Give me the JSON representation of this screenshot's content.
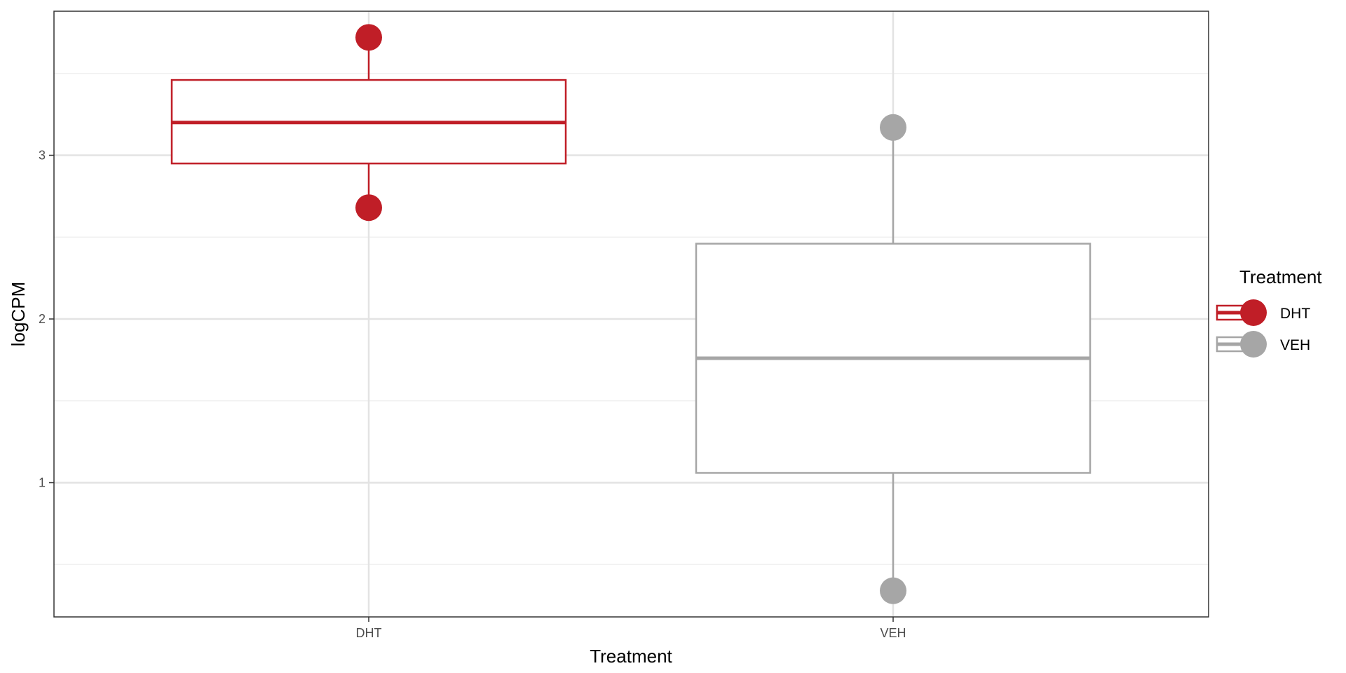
{
  "chart_data": {
    "type": "box",
    "x_categories": [
      "DHT",
      "VEH"
    ],
    "xlabel": "Treatment",
    "ylabel": "logCPM",
    "ylim": [
      0.18,
      3.88
    ],
    "y_ticks": [
      1,
      2,
      3
    ],
    "grid": true,
    "legend": {
      "title": "Treatment",
      "position": "right",
      "entries": [
        {
          "label": "DHT",
          "color": "#C01E27"
        },
        {
          "label": "VEH",
          "color": "#A6A6A6"
        }
      ]
    },
    "series": [
      {
        "category": "DHT",
        "color": "#C01E27",
        "whisker_low": 2.95,
        "q1": 2.95,
        "median": 3.2,
        "q3": 3.46,
        "whisker_high": 3.46,
        "outliers": [
          3.72,
          2.68
        ]
      },
      {
        "category": "VEH",
        "color": "#A6A6A6",
        "whisker_low": 1.06,
        "q1": 1.06,
        "median": 1.76,
        "q3": 2.46,
        "whisker_high": 2.46,
        "outliers": [
          3.17,
          0.34
        ]
      }
    ]
  }
}
